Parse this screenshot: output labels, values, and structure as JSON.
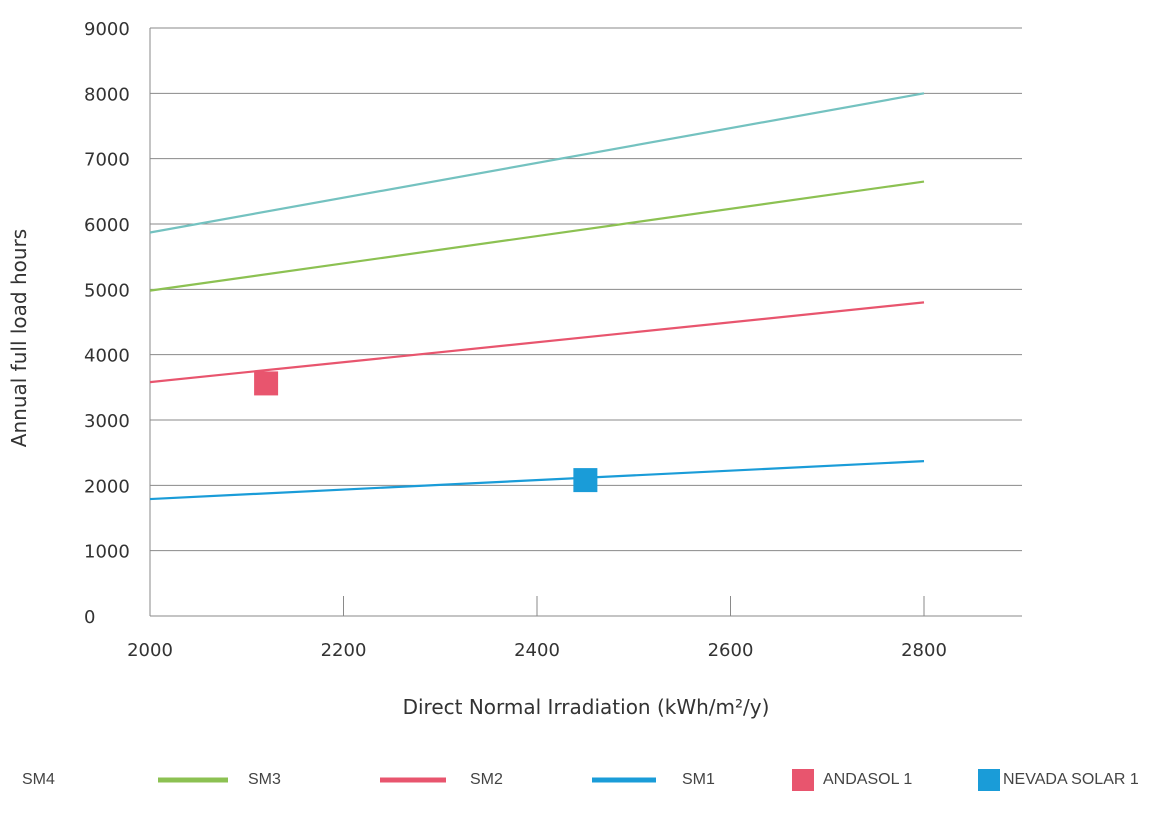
{
  "chart_data": {
    "type": "line",
    "title": "",
    "xlabel": "Direct Normal Irradiation (kWh/m²/y)",
    "ylabel": "Annual full load hours",
    "xlim": [
      2000,
      2800
    ],
    "ylim": [
      0,
      9000
    ],
    "x_ticks": [
      2000,
      2200,
      2400,
      2600,
      2800
    ],
    "y_ticks": [
      0,
      1000,
      2000,
      3000,
      4000,
      5000,
      6000,
      7000,
      8000,
      9000
    ],
    "grid": "horizontal",
    "legend_position": "bottom",
    "series": [
      {
        "name": "SM4",
        "kind": "line",
        "color": "#74c2c0",
        "x": [
          2000,
          2800
        ],
        "y": [
          5870,
          8000
        ]
      },
      {
        "name": "SM3",
        "kind": "line",
        "color": "#8cc152",
        "x": [
          2000,
          2800
        ],
        "y": [
          4980,
          6650
        ]
      },
      {
        "name": "SM2",
        "kind": "line",
        "color": "#e8556e",
        "x": [
          2000,
          2800
        ],
        "y": [
          3580,
          4800
        ]
      },
      {
        "name": "SM1",
        "kind": "line",
        "color": "#1a9cd8",
        "x": [
          2000,
          2800
        ],
        "y": [
          1790,
          2370
        ]
      },
      {
        "name": "ANDASOL 1",
        "kind": "marker",
        "color": "#e8556e",
        "x": [
          2120
        ],
        "y": [
          3560
        ]
      },
      {
        "name": "NEVADA SOLAR 1",
        "kind": "marker",
        "color": "#1a9cd8",
        "x": [
          2450
        ],
        "y": [
          2080
        ]
      }
    ]
  }
}
